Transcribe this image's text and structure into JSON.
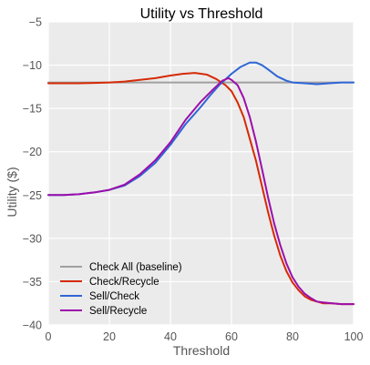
{
  "chart_data": {
    "type": "line",
    "title": "Utility vs Threshold",
    "xlabel": "Threshold",
    "ylabel": "Utility ($)",
    "xlim": [
      0,
      100
    ],
    "ylim": [
      -40,
      -5
    ],
    "xticks": [
      "0",
      "20",
      "40",
      "60",
      "80",
      "100"
    ],
    "yticks": [
      "−40",
      "−35",
      "−30",
      "−25",
      "−20",
      "−15",
      "−10",
      "−5"
    ],
    "grid": true,
    "legend_position": "lower-left",
    "background": "#ebebeb",
    "series": [
      {
        "name": "Check All (baseline)",
        "color": "#a0a0a0",
        "x": [
          0,
          100
        ],
        "y": [
          -12.0,
          -12.0
        ]
      },
      {
        "name": "Check/Recycle",
        "color": "#d62a06",
        "x": [
          0,
          5,
          10,
          15,
          20,
          25,
          30,
          35,
          40,
          44,
          48,
          52,
          55,
          58,
          60,
          62,
          64,
          66,
          68,
          70,
          72,
          74,
          76,
          78,
          80,
          82,
          84,
          86,
          88,
          90,
          93,
          96,
          100
        ],
        "y": [
          -12.1,
          -12.1,
          -12.1,
          -12.05,
          -12.0,
          -11.9,
          -11.7,
          -11.5,
          -11.2,
          -11.0,
          -10.9,
          -11.1,
          -11.6,
          -12.3,
          -13.0,
          -14.3,
          -16.0,
          -18.5,
          -21.0,
          -24.0,
          -27.0,
          -29.7,
          -32.0,
          -33.8,
          -35.1,
          -36.0,
          -36.7,
          -37.1,
          -37.3,
          -37.5,
          -37.5,
          -37.6,
          -37.6
        ]
      },
      {
        "name": "Sell/Check",
        "color": "#2f66d6",
        "x": [
          0,
          5,
          10,
          15,
          20,
          25,
          30,
          35,
          40,
          45,
          50,
          53,
          56,
          60,
          63,
          66,
          68,
          70,
          72,
          75,
          78,
          80,
          84,
          88,
          92,
          96,
          100
        ],
        "y": [
          -25.0,
          -25.0,
          -24.9,
          -24.7,
          -24.4,
          -23.9,
          -22.8,
          -21.3,
          -19.2,
          -16.8,
          -14.8,
          -13.5,
          -12.3,
          -11.0,
          -10.2,
          -9.7,
          -9.7,
          -10.0,
          -10.5,
          -11.3,
          -11.8,
          -12.0,
          -12.1,
          -12.2,
          -12.1,
          -12.0,
          -12.0
        ]
      },
      {
        "name": "Sell/Recycle",
        "color": "#9c0fab",
        "x": [
          0,
          5,
          10,
          15,
          20,
          25,
          30,
          35,
          40,
          45,
          50,
          54,
          57,
          59,
          60,
          62,
          64,
          66,
          68,
          70,
          72,
          74,
          76,
          78,
          80,
          82,
          84,
          86,
          88,
          90,
          93,
          96,
          100
        ],
        "y": [
          -25.0,
          -25.0,
          -24.9,
          -24.7,
          -24.4,
          -23.8,
          -22.6,
          -21.0,
          -18.9,
          -16.3,
          -14.2,
          -12.8,
          -11.8,
          -11.5,
          -11.7,
          -12.3,
          -13.8,
          -16.0,
          -18.8,
          -22.0,
          -25.3,
          -28.3,
          -30.8,
          -32.9,
          -34.5,
          -35.6,
          -36.4,
          -36.9,
          -37.3,
          -37.4,
          -37.5,
          -37.6,
          -37.6
        ]
      }
    ]
  }
}
